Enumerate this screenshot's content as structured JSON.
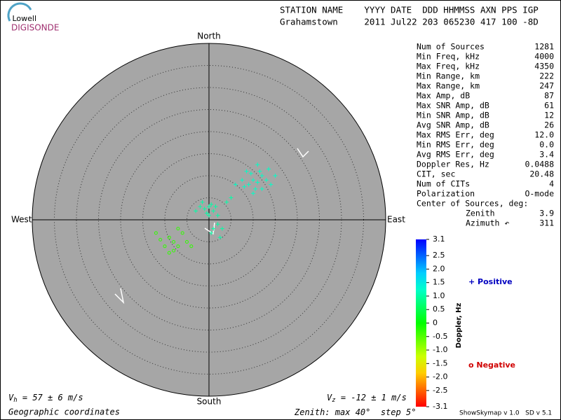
{
  "header": {
    "brand_top": "Lowell",
    "brand": "DIGISONDE",
    "labels": "STATION NAME    YYYY DATE  DDD HHMMSS AXN PPS IGP",
    "values": "Grahamstown     2011 Jul22 203 065230 417 100 -8D"
  },
  "stats": {
    "rows": [
      [
        "Num of Sources",
        "1281"
      ],
      [
        "Min Freq, kHz",
        "4000"
      ],
      [
        "Max Freq, kHz",
        "4350"
      ],
      [
        "Min Range, km",
        "222"
      ],
      [
        "Max Range, km",
        "247"
      ],
      [
        "Max Amp, dB",
        "87"
      ],
      [
        "Max SNR Amp, dB",
        "61"
      ],
      [
        "Min SNR Amp, dB",
        "12"
      ],
      [
        "Avg SNR Amp, dB",
        "26"
      ],
      [
        "Max RMS Err, deg",
        "12.0"
      ],
      [
        "Min RMS Err, deg",
        "0.0"
      ],
      [
        "Avg RMS Err, deg",
        "3.4"
      ],
      [
        "Doppler Res, Hz",
        "0.0488"
      ],
      [
        "CIT, sec",
        "20.48"
      ],
      [
        "Num of CITs",
        "4"
      ],
      [
        "Polarization",
        "O-mode"
      ]
    ],
    "center_title": "Center of Sources, deg:",
    "center_rows": [
      [
        "Zenith",
        "3.9"
      ],
      [
        "Azimuth ↶",
        "311"
      ]
    ]
  },
  "chart_data": {
    "type": "skymap",
    "directions": {
      "north": "North",
      "south": "South",
      "east": "East",
      "west": "West"
    },
    "zenith_text": [
      "Zenith: max ",
      "°  step ",
      "°"
    ],
    "zenith_max": 40,
    "zenith_step": 5,
    "x": [
      10,
      9,
      11,
      12,
      8,
      10.5,
      13,
      9.5,
      11.5,
      7.5,
      12,
      14,
      10,
      8.5,
      13.5,
      6,
      15,
      11,
      0,
      -1,
      1,
      0.5,
      -0.5,
      1.5,
      -2,
      2,
      0,
      -1.5,
      1,
      2,
      0.5,
      3,
      -3,
      2.5,
      4,
      5,
      -8,
      -9,
      -7,
      -10,
      -6,
      -8,
      -11,
      -5,
      -7,
      -12,
      -9,
      -4
    ],
    "y": [
      9,
      8,
      8.5,
      10,
      7.5,
      7,
      9,
      10.5,
      11,
      9,
      7,
      8,
      6,
      11,
      11.5,
      8,
      10,
      12.5,
      3,
      2.5,
      2,
      3.5,
      1.5,
      3,
      3,
      1,
      1,
      4,
      -2,
      -1,
      -3,
      -2,
      2,
      -4,
      4,
      5,
      -5,
      -4,
      -6,
      -6,
      -3,
      -7,
      -4.5,
      -5,
      -2,
      -3,
      -7.5,
      -6
    ],
    "doppler": [
      1.2,
      1.2,
      1.2,
      1.2,
      1.2,
      1.2,
      1.2,
      1.2,
      1.2,
      1.2,
      1.2,
      1.2,
      1.2,
      1.2,
      1.2,
      1.2,
      1.2,
      1.2,
      1,
      1,
      1,
      1,
      1,
      1,
      1,
      1,
      1,
      1,
      1,
      1,
      1,
      1,
      1,
      1,
      1,
      1,
      -0.3,
      -0.3,
      -0.3,
      -0.3,
      -0.3,
      -0.3,
      -0.3,
      -0.3,
      -0.3,
      -0.3,
      -0.3,
      -0.3
    ],
    "clim": [
      -3.1,
      3.1
    ],
    "colorbar_title": "Doppler, Hz",
    "cticks": [
      3.1,
      2.5,
      {
        "value": 2,
        "label": "2.0"
      },
      1.5,
      {
        "value": 1,
        "label": "1.0"
      },
      0.5,
      0,
      -0.5,
      {
        "value": -1,
        "label": "-1.0"
      },
      -1.5,
      {
        "value": -2,
        "label": "-2.0"
      },
      -2.5,
      -3.1
    ],
    "legend": {
      "positive": "+ Positive",
      "negative": "o Negative"
    },
    "vh": {
      "symbol": "V",
      "sub": "h",
      "text": " = 57 ± 6 m/s"
    },
    "vz": {
      "symbol": "V",
      "sub": "z",
      "text": " = -12 ± 1 m/s"
    },
    "coords": "Geographic coordinates",
    "version": "ShowSkymap v 1.0   SD v 5.1"
  }
}
